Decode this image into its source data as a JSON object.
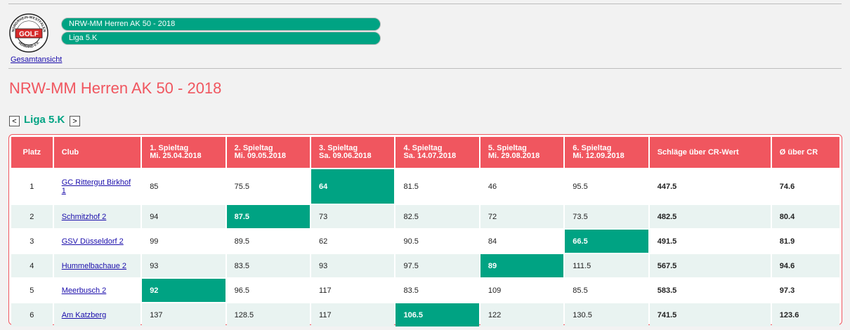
{
  "header": {
    "logo": {
      "icon": "golf-verband-logo-icon",
      "text_top": "NORDRHEIN-WESTFALEN",
      "text_center": "GOLF",
      "text_bottom": "VERBAND e.V."
    },
    "overview_link": "Gesamtansicht",
    "pills": [
      "NRW-MM Herren AK 50 - 2018",
      "Liga 5.K"
    ]
  },
  "page_title": "NRW-MM Herren AK 50 - 2018",
  "liga": {
    "prev": "<",
    "title": "Liga 5.K",
    "next": ">"
  },
  "table": {
    "headers": [
      {
        "line1": "Platz",
        "line2": ""
      },
      {
        "line1": "Club",
        "line2": ""
      },
      {
        "line1": "1. Spieltag",
        "line2": "Mi. 25.04.2018"
      },
      {
        "line1": "2. Spieltag",
        "line2": "Mi. 09.05.2018"
      },
      {
        "line1": "3. Spieltag",
        "line2": "Sa. 09.06.2018"
      },
      {
        "line1": "4. Spieltag",
        "line2": "Sa. 14.07.2018"
      },
      {
        "line1": "5. Spieltag",
        "line2": "Mi. 29.08.2018"
      },
      {
        "line1": "6. Spieltag",
        "line2": "Mi. 12.09.2018"
      },
      {
        "line1": "Schläge über CR-Wert",
        "line2": ""
      },
      {
        "line1": "Ø über CR",
        "line2": ""
      }
    ],
    "rows": [
      {
        "platz": "1",
        "club": "GC Rittergut Birkhof 1",
        "scores": [
          "85",
          "75.5",
          "64",
          "81.5",
          "46",
          "95.5"
        ],
        "total": "447.5",
        "avg": "74.6",
        "best_index": 2
      },
      {
        "platz": "2",
        "club": "Schmitzhof 2",
        "scores": [
          "94",
          "87.5",
          "73",
          "82.5",
          "72",
          "73.5"
        ],
        "total": "482.5",
        "avg": "80.4",
        "best_index": 1
      },
      {
        "platz": "3",
        "club": "GSV Düsseldorf 2",
        "scores": [
          "99",
          "89.5",
          "62",
          "90.5",
          "84",
          "66.5"
        ],
        "total": "491.5",
        "avg": "81.9",
        "best_index": 5
      },
      {
        "platz": "4",
        "club": "Hummelbachaue 2",
        "scores": [
          "93",
          "83.5",
          "93",
          "97.5",
          "89",
          "111.5"
        ],
        "total": "567.5",
        "avg": "94.6",
        "best_index": 4
      },
      {
        "platz": "5",
        "club": "Meerbusch 2",
        "scores": [
          "92",
          "96.5",
          "117",
          "83.5",
          "109",
          "85.5"
        ],
        "total": "583.5",
        "avg": "97.3",
        "best_index": 0
      },
      {
        "platz": "6",
        "club": "Am Katzberg",
        "scores": [
          "137",
          "128.5",
          "117",
          "106.5",
          "122",
          "130.5"
        ],
        "total": "741.5",
        "avg": "123.6",
        "best_index": 3
      }
    ]
  },
  "colors": {
    "accent_red": "#f0565f",
    "accent_green": "#00a383",
    "alt_row": "#e9f3f1"
  }
}
